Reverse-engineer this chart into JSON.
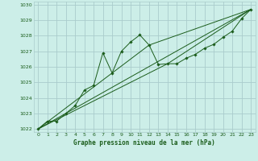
{
  "title": "Graphe pression niveau de la mer (hPa)",
  "bg_color": "#cceee8",
  "grid_color": "#aacccc",
  "line_color": "#1a5c1a",
  "marker_color": "#1a5c1a",
  "xlim": [
    -0.5,
    23.5
  ],
  "ylim": [
    1021.8,
    1030.2
  ],
  "xticks": [
    0,
    1,
    2,
    3,
    4,
    5,
    6,
    7,
    8,
    9,
    10,
    11,
    12,
    13,
    14,
    15,
    16,
    17,
    18,
    19,
    20,
    21,
    22,
    23
  ],
  "yticks": [
    1022,
    1023,
    1024,
    1025,
    1026,
    1027,
    1028,
    1029,
    1030
  ],
  "series1_x": [
    0,
    1,
    2,
    3,
    4,
    5,
    6,
    7,
    8,
    9,
    10,
    11,
    12,
    13,
    14,
    15,
    16,
    17,
    18,
    19,
    20,
    21,
    22,
    23
  ],
  "series1_y": [
    1022.0,
    1022.5,
    1022.5,
    1023.0,
    1023.5,
    1024.5,
    1024.8,
    1026.9,
    1025.6,
    1027.0,
    1027.6,
    1028.05,
    1027.4,
    1026.15,
    1026.2,
    1026.2,
    1026.55,
    1026.8,
    1027.2,
    1027.45,
    1027.9,
    1028.3,
    1029.1,
    1029.7
  ],
  "series2_x": [
    0,
    23
  ],
  "series2_y": [
    1022.0,
    1029.7
  ],
  "series3_x": [
    0,
    12,
    23
  ],
  "series3_y": [
    1022.0,
    1027.4,
    1029.7
  ],
  "series4_x": [
    0,
    14,
    23
  ],
  "series4_y": [
    1022.0,
    1026.2,
    1029.7
  ]
}
